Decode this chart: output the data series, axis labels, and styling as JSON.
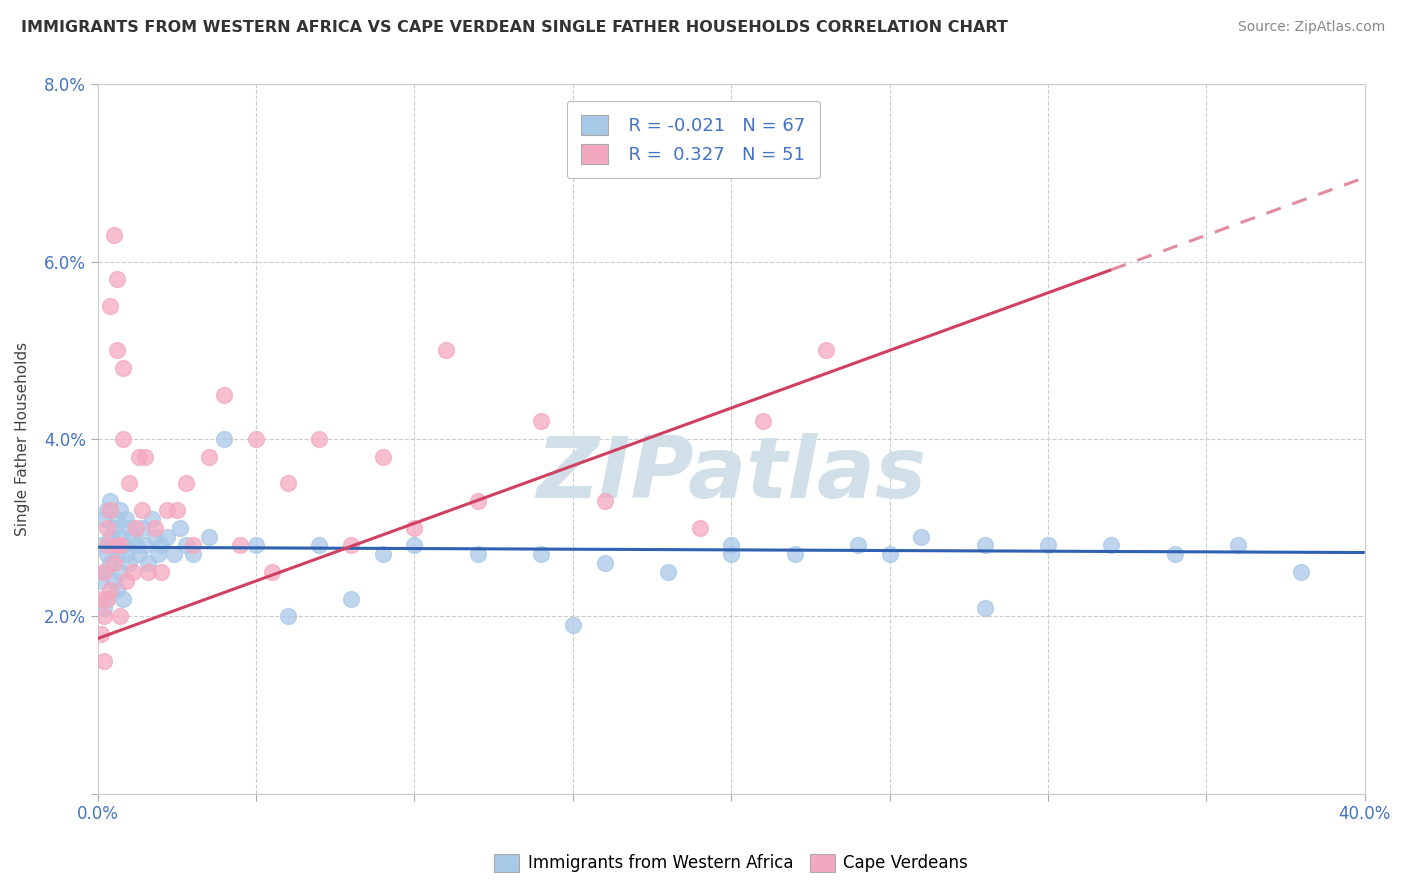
{
  "title": "IMMIGRANTS FROM WESTERN AFRICA VS CAPE VERDEAN SINGLE FATHER HOUSEHOLDS CORRELATION CHART",
  "source": "Source: ZipAtlas.com",
  "ylabel": "Single Father Households",
  "xlim": [
    0.0,
    0.4
  ],
  "ylim": [
    0.0,
    0.08
  ],
  "xticks": [
    0.0,
    0.05,
    0.1,
    0.15,
    0.2,
    0.25,
    0.3,
    0.35,
    0.4
  ],
  "yticks": [
    0.0,
    0.02,
    0.04,
    0.06,
    0.08
  ],
  "blue_R": -0.021,
  "blue_N": 67,
  "pink_R": 0.327,
  "pink_N": 51,
  "blue_color": "#a8c8e8",
  "pink_color": "#f4a8c0",
  "blue_line_color": "#3060b0",
  "pink_line_color": "#d04060",
  "watermark_color": "#d0dfe8",
  "legend_labels": [
    "Immigrants from Western Africa",
    "Cape Verdeans"
  ],
  "figsize": [
    14.06,
    8.92
  ],
  "dpi": 100,
  "blue_scatter_x": [
    0.001,
    0.001,
    0.002,
    0.002,
    0.002,
    0.003,
    0.003,
    0.003,
    0.004,
    0.004,
    0.004,
    0.005,
    0.005,
    0.005,
    0.006,
    0.006,
    0.006,
    0.007,
    0.007,
    0.007,
    0.008,
    0.008,
    0.009,
    0.009,
    0.01,
    0.01,
    0.011,
    0.012,
    0.013,
    0.014,
    0.015,
    0.016,
    0.017,
    0.018,
    0.019,
    0.02,
    0.022,
    0.024,
    0.026,
    0.028,
    0.03,
    0.035,
    0.04,
    0.05,
    0.06,
    0.07,
    0.08,
    0.09,
    0.1,
    0.12,
    0.14,
    0.16,
    0.18,
    0.2,
    0.22,
    0.24,
    0.26,
    0.28,
    0.3,
    0.32,
    0.34,
    0.36,
    0.38,
    0.2,
    0.15,
    0.25,
    0.28
  ],
  "blue_scatter_y": [
    0.028,
    0.024,
    0.025,
    0.031,
    0.021,
    0.027,
    0.032,
    0.022,
    0.029,
    0.026,
    0.033,
    0.024,
    0.03,
    0.028,
    0.023,
    0.027,
    0.031,
    0.025,
    0.029,
    0.032,
    0.022,
    0.028,
    0.027,
    0.031,
    0.026,
    0.03,
    0.029,
    0.028,
    0.027,
    0.03,
    0.028,
    0.026,
    0.031,
    0.029,
    0.027,
    0.028,
    0.029,
    0.027,
    0.03,
    0.028,
    0.027,
    0.029,
    0.04,
    0.028,
    0.02,
    0.028,
    0.022,
    0.027,
    0.028,
    0.027,
    0.027,
    0.026,
    0.025,
    0.028,
    0.027,
    0.028,
    0.029,
    0.028,
    0.028,
    0.028,
    0.027,
    0.028,
    0.025,
    0.027,
    0.019,
    0.027,
    0.021
  ],
  "pink_scatter_x": [
    0.001,
    0.001,
    0.002,
    0.002,
    0.002,
    0.003,
    0.003,
    0.003,
    0.004,
    0.004,
    0.004,
    0.005,
    0.005,
    0.006,
    0.006,
    0.006,
    0.007,
    0.007,
    0.008,
    0.008,
    0.009,
    0.01,
    0.011,
    0.012,
    0.013,
    0.014,
    0.015,
    0.016,
    0.018,
    0.02,
    0.022,
    0.025,
    0.028,
    0.03,
    0.035,
    0.04,
    0.045,
    0.05,
    0.055,
    0.06,
    0.07,
    0.08,
    0.09,
    0.1,
    0.11,
    0.12,
    0.14,
    0.16,
    0.19,
    0.21,
    0.23
  ],
  "pink_scatter_y": [
    0.022,
    0.018,
    0.025,
    0.02,
    0.015,
    0.028,
    0.022,
    0.03,
    0.055,
    0.023,
    0.032,
    0.026,
    0.063,
    0.05,
    0.028,
    0.058,
    0.02,
    0.028,
    0.04,
    0.048,
    0.024,
    0.035,
    0.025,
    0.03,
    0.038,
    0.032,
    0.038,
    0.025,
    0.03,
    0.025,
    0.032,
    0.032,
    0.035,
    0.028,
    0.038,
    0.045,
    0.028,
    0.04,
    0.025,
    0.035,
    0.04,
    0.028,
    0.038,
    0.03,
    0.05,
    0.033,
    0.042,
    0.033,
    0.03,
    0.042,
    0.05
  ],
  "pink_line_x_max": 0.32,
  "blue_line_start_y": 0.0278,
  "blue_line_end_y": 0.0272,
  "pink_line_start_y": 0.0175,
  "pink_line_end_y": 0.0695
}
